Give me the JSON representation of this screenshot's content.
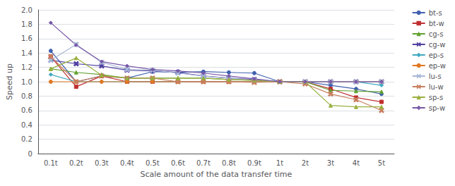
{
  "chart_data": {
    "type": "line",
    "xlabel": "Scale amount of the data transfer time",
    "ylabel": "Speed up",
    "categories": [
      "0.1t",
      "0.2t",
      "0.3t",
      "0.4t",
      "0.5t",
      "0.6t",
      "0.7t",
      "0.8t",
      "0.9t",
      "1t",
      "2t",
      "3t",
      "4t",
      "5t"
    ],
    "series": [
      {
        "name": "bt-s",
        "color": "#4060af",
        "marker": "circle",
        "values": [
          1.43,
          1.0,
          1.08,
          1.05,
          1.14,
          1.13,
          1.14,
          1.13,
          1.12,
          1.0,
          1.0,
          0.95,
          0.9,
          0.83
        ]
      },
      {
        "name": "bt-w",
        "color": "#c03030",
        "marker": "square",
        "values": [
          1.35,
          0.93,
          1.08,
          1.0,
          1.0,
          1.0,
          1.0,
          1.0,
          1.0,
          1.0,
          1.0,
          0.9,
          0.78,
          0.72
        ]
      },
      {
        "name": "cg-s",
        "color": "#60a030",
        "marker": "triangle",
        "values": [
          1.18,
          1.13,
          1.1,
          1.05,
          1.05,
          1.05,
          1.05,
          1.03,
          1.02,
          1.0,
          1.0,
          0.88,
          0.87,
          0.86
        ]
      },
      {
        "name": "cg-w",
        "color": "#5040a0",
        "marker": "x",
        "values": [
          1.3,
          1.25,
          1.22,
          1.16,
          1.15,
          1.13,
          1.08,
          1.05,
          1.03,
          1.0,
          1.0,
          1.0,
          1.0,
          1.0
        ]
      },
      {
        "name": "ep-s",
        "color": "#40a8c0",
        "marker": "diamond",
        "values": [
          1.1,
          1.0,
          1.0,
          1.0,
          1.0,
          1.0,
          1.0,
          1.0,
          1.0,
          1.0,
          1.0,
          1.0,
          1.0,
          0.95
        ]
      },
      {
        "name": "ep-w",
        "color": "#e07820",
        "marker": "circle",
        "values": [
          1.0,
          1.0,
          1.0,
          1.0,
          1.0,
          1.0,
          1.0,
          1.0,
          1.0,
          1.0,
          1.0,
          1.0,
          1.0,
          1.0
        ]
      },
      {
        "name": "lu-s",
        "color": "#a8b8d8",
        "marker": "x",
        "values": [
          1.3,
          1.52,
          1.27,
          1.17,
          1.16,
          1.12,
          1.08,
          1.05,
          1.02,
          1.0,
          1.0,
          1.0,
          1.0,
          1.0
        ]
      },
      {
        "name": "lu-w",
        "color": "#c88060",
        "marker": "x",
        "values": [
          1.35,
          1.0,
          1.08,
          1.05,
          1.05,
          1.0,
          1.0,
          1.0,
          0.99,
          1.0,
          0.97,
          0.83,
          0.75,
          0.6
        ]
      },
      {
        "name": "sp-s",
        "color": "#98b040",
        "marker": "triangle",
        "values": [
          1.18,
          1.33,
          1.09,
          1.05,
          1.05,
          1.05,
          1.05,
          1.03,
          1.02,
          1.0,
          1.0,
          0.67,
          0.65,
          0.65
        ]
      },
      {
        "name": "sp-w",
        "color": "#7858a8",
        "marker": "diamond",
        "values": [
          1.82,
          1.51,
          1.28,
          1.22,
          1.17,
          1.15,
          1.12,
          1.08,
          1.04,
          1.0,
          1.0,
          1.0,
          1.0,
          1.0
        ]
      }
    ],
    "ylim": [
      0,
      2.0
    ],
    "yticks": [
      0,
      0.2,
      0.4,
      0.6,
      0.8,
      {
        "value": 1.0,
        "label": "1.0"
      },
      1.2,
      1.4,
      1.6,
      1.8,
      {
        "value": 2.0,
        "label": "2.0"
      }
    ],
    "grid": true,
    "legend": "right"
  }
}
